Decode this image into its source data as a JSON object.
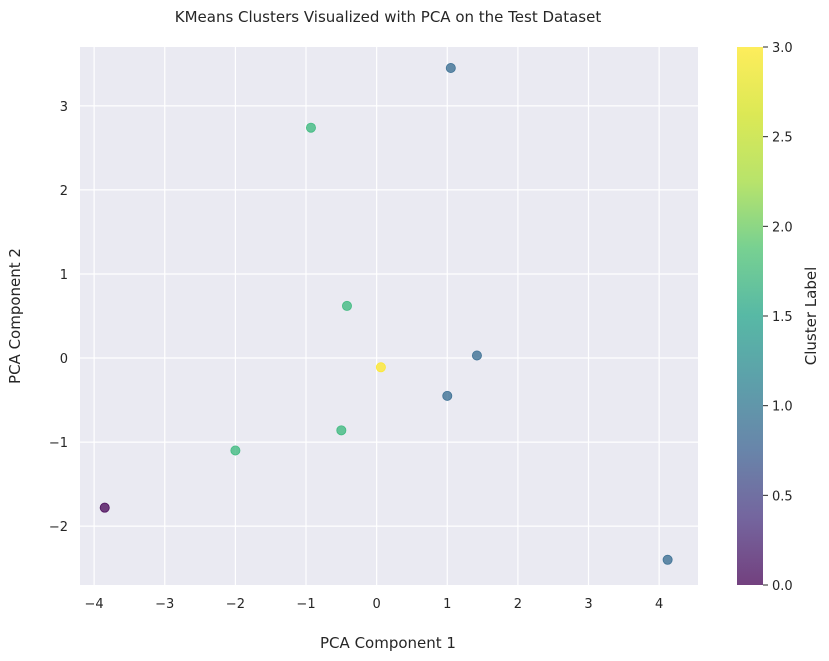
{
  "chart_data": {
    "type": "scatter",
    "title": "KMeans Clusters Visualized with PCA on the Test Dataset",
    "xlabel": "PCA Component 1",
    "ylabel": "PCA Component 2",
    "xlim": [
      -4.2,
      4.55
    ],
    "ylim": [
      -2.7,
      3.7
    ],
    "xticks": [
      -4,
      -3,
      -2,
      -1,
      0,
      1,
      2,
      3,
      4
    ],
    "yticks": [
      -2,
      -1,
      0,
      1,
      2,
      3
    ],
    "grid": true,
    "points": [
      {
        "x": 1.05,
        "y": 3.45,
        "cluster": 1
      },
      {
        "x": -0.93,
        "y": 2.74,
        "cluster": 2
      },
      {
        "x": -0.42,
        "y": 0.62,
        "cluster": 2
      },
      {
        "x": 1.42,
        "y": 0.03,
        "cluster": 1
      },
      {
        "x": 0.06,
        "y": -0.11,
        "cluster": 3
      },
      {
        "x": 1.0,
        "y": -0.45,
        "cluster": 1
      },
      {
        "x": -0.5,
        "y": -0.86,
        "cluster": 2
      },
      {
        "x": -2.0,
        "y": -1.1,
        "cluster": 2
      },
      {
        "x": -3.85,
        "y": -1.78,
        "cluster": 0
      },
      {
        "x": 4.12,
        "y": -2.4,
        "cluster": 1
      }
    ],
    "colorbar": {
      "label": "Cluster Label",
      "range": [
        0.0,
        3.0
      ],
      "ticks": [
        "0.0",
        "0.5",
        "1.0",
        "1.5",
        "2.0",
        "2.5",
        "3.0"
      ],
      "colormap": "viridis"
    },
    "colors": {
      "plot_background": "#eaeaf2",
      "grid": "#ffffff",
      "cluster_0": "#440154",
      "cluster_1": "#31688e",
      "cluster_2": "#35b779",
      "cluster_3": "#fde725"
    }
  }
}
